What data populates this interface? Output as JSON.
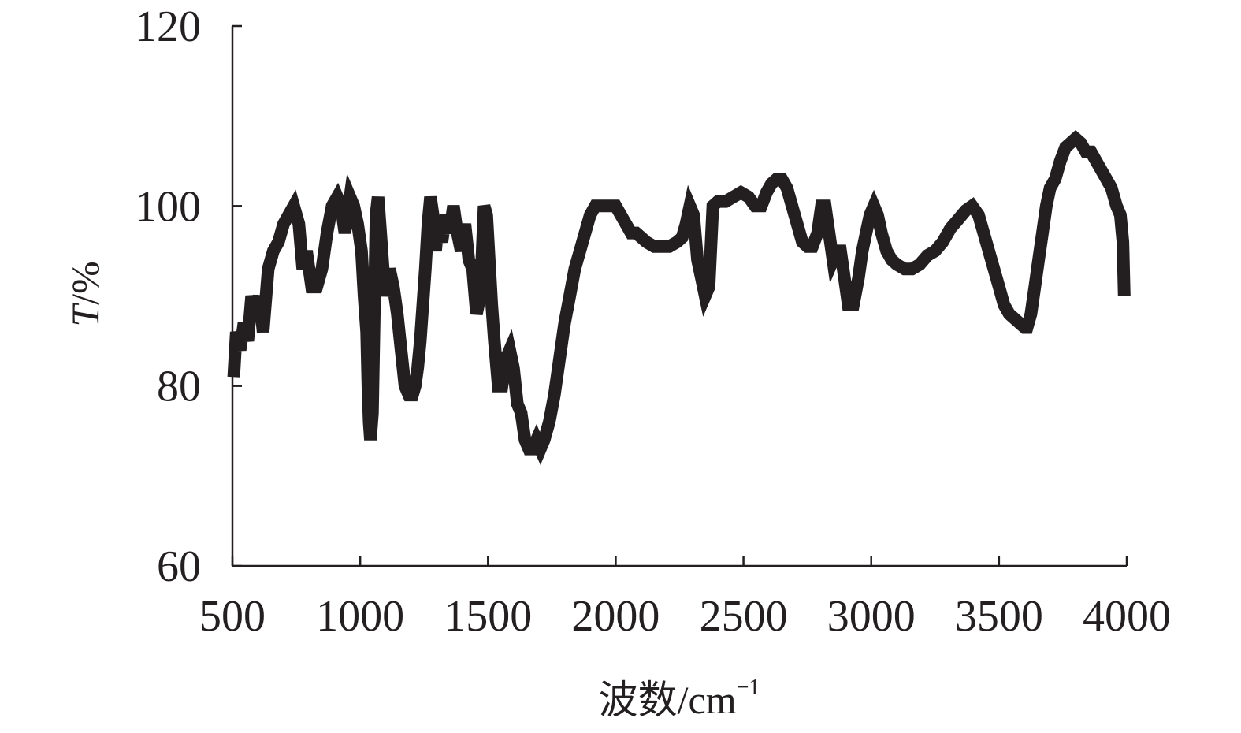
{
  "chart_data": {
    "type": "line",
    "title": "",
    "xlabel_prefix": "波数/cm",
    "xlabel_sup": "−1",
    "ylabel_italic": "T",
    "ylabel_rest": "/%",
    "xlim": [
      500,
      4000
    ],
    "ylim": [
      60,
      120
    ],
    "x_ticks": [
      500,
      1000,
      1500,
      2000,
      2500,
      3000,
      3500,
      4000
    ],
    "y_ticks": [
      60,
      80,
      100,
      120
    ],
    "legend": "none",
    "grid": false,
    "series": [
      {
        "color": "#231f20",
        "points": [
          [
            505,
            81
          ],
          [
            515,
            86
          ],
          [
            530,
            84
          ],
          [
            545,
            87
          ],
          [
            560,
            85
          ],
          [
            575,
            90
          ],
          [
            590,
            88
          ],
          [
            605,
            90
          ],
          [
            620,
            86
          ],
          [
            640,
            93
          ],
          [
            660,
            95
          ],
          [
            680,
            96
          ],
          [
            700,
            98
          ],
          [
            720,
            99
          ],
          [
            740,
            100
          ],
          [
            760,
            98
          ],
          [
            775,
            93
          ],
          [
            790,
            95
          ],
          [
            810,
            91
          ],
          [
            830,
            91
          ],
          [
            850,
            93
          ],
          [
            870,
            97
          ],
          [
            890,
            100
          ],
          [
            910,
            101
          ],
          [
            925,
            100
          ],
          [
            940,
            97
          ],
          [
            960,
            101
          ],
          [
            975,
            100
          ],
          [
            990,
            98
          ],
          [
            1005,
            95
          ],
          [
            1015,
            90
          ],
          [
            1025,
            86
          ],
          [
            1030,
            80
          ],
          [
            1035,
            76
          ],
          [
            1040,
            74
          ],
          [
            1048,
            77
          ],
          [
            1055,
            88
          ],
          [
            1062,
            99
          ],
          [
            1070,
            101
          ],
          [
            1080,
            97
          ],
          [
            1090,
            93
          ],
          [
            1100,
            90
          ],
          [
            1115,
            93
          ],
          [
            1130,
            91
          ],
          [
            1145,
            88
          ],
          [
            1160,
            84
          ],
          [
            1175,
            80
          ],
          [
            1190,
            79
          ],
          [
            1205,
            79
          ],
          [
            1215,
            80
          ],
          [
            1225,
            82
          ],
          [
            1235,
            85
          ],
          [
            1245,
            89
          ],
          [
            1255,
            93
          ],
          [
            1265,
            98
          ],
          [
            1275,
            101
          ],
          [
            1285,
            99
          ],
          [
            1295,
            95
          ],
          [
            1305,
            98
          ],
          [
            1320,
            96
          ],
          [
            1335,
            99
          ],
          [
            1350,
            97
          ],
          [
            1365,
            100
          ],
          [
            1380,
            97
          ],
          [
            1395,
            95
          ],
          [
            1410,
            98
          ],
          [
            1425,
            94
          ],
          [
            1440,
            93
          ],
          [
            1455,
            88
          ],
          [
            1470,
            90
          ],
          [
            1485,
            100
          ],
          [
            1495,
            99
          ],
          [
            1505,
            94
          ],
          [
            1515,
            89
          ],
          [
            1525,
            85
          ],
          [
            1540,
            80
          ],
          [
            1555,
            80
          ],
          [
            1570,
            83
          ],
          [
            1585,
            84
          ],
          [
            1600,
            82
          ],
          [
            1615,
            78
          ],
          [
            1630,
            77
          ],
          [
            1645,
            74
          ],
          [
            1660,
            73
          ],
          [
            1675,
            73
          ],
          [
            1690,
            74
          ],
          [
            1705,
            73
          ],
          [
            1720,
            74
          ],
          [
            1740,
            76
          ],
          [
            1760,
            79
          ],
          [
            1780,
            83
          ],
          [
            1800,
            87
          ],
          [
            1820,
            90
          ],
          [
            1840,
            93
          ],
          [
            1860,
            95
          ],
          [
            1880,
            97
          ],
          [
            1900,
            99
          ],
          [
            1920,
            100
          ],
          [
            1950,
            100
          ],
          [
            1980,
            100
          ],
          [
            2000,
            100
          ],
          [
            2020,
            99
          ],
          [
            2040,
            98
          ],
          [
            2060,
            97
          ],
          [
            2080,
            97
          ],
          [
            2100,
            96.5
          ],
          [
            2120,
            96
          ],
          [
            2150,
            95.5
          ],
          [
            2180,
            95.5
          ],
          [
            2210,
            95.5
          ],
          [
            2240,
            96
          ],
          [
            2260,
            96.5
          ],
          [
            2275,
            98
          ],
          [
            2290,
            100
          ],
          [
            2305,
            99
          ],
          [
            2320,
            94
          ],
          [
            2335,
            92
          ],
          [
            2350,
            90
          ],
          [
            2365,
            91
          ],
          [
            2380,
            100
          ],
          [
            2400,
            100.5
          ],
          [
            2430,
            100.5
          ],
          [
            2460,
            101
          ],
          [
            2490,
            101.5
          ],
          [
            2520,
            101
          ],
          [
            2545,
            100
          ],
          [
            2570,
            100
          ],
          [
            2590,
            101.5
          ],
          [
            2610,
            102.5
          ],
          [
            2630,
            103
          ],
          [
            2650,
            103
          ],
          [
            2670,
            102
          ],
          [
            2690,
            100
          ],
          [
            2710,
            98
          ],
          [
            2730,
            96
          ],
          [
            2750,
            95.5
          ],
          [
            2770,
            95.5
          ],
          [
            2790,
            97
          ],
          [
            2805,
            100
          ],
          [
            2820,
            100
          ],
          [
            2835,
            97
          ],
          [
            2850,
            94
          ],
          [
            2865,
            95
          ],
          [
            2880,
            95
          ],
          [
            2895,
            92
          ],
          [
            2910,
            89
          ],
          [
            2930,
            89
          ],
          [
            2950,
            92
          ],
          [
            2965,
            95
          ],
          [
            2980,
            97
          ],
          [
            2995,
            99
          ],
          [
            3010,
            100
          ],
          [
            3025,
            99
          ],
          [
            3040,
            97
          ],
          [
            3060,
            95
          ],
          [
            3080,
            94
          ],
          [
            3100,
            93.5
          ],
          [
            3130,
            93
          ],
          [
            3160,
            93
          ],
          [
            3190,
            93.5
          ],
          [
            3220,
            94.5
          ],
          [
            3250,
            95
          ],
          [
            3280,
            96
          ],
          [
            3310,
            97.5
          ],
          [
            3340,
            98.5
          ],
          [
            3370,
            99.5
          ],
          [
            3395,
            100
          ],
          [
            3420,
            99
          ],
          [
            3440,
            97
          ],
          [
            3460,
            95
          ],
          [
            3480,
            93
          ],
          [
            3500,
            91
          ],
          [
            3520,
            89
          ],
          [
            3540,
            88
          ],
          [
            3560,
            87.5
          ],
          [
            3580,
            87
          ],
          [
            3600,
            86.5
          ],
          [
            3610,
            86.5
          ],
          [
            3625,
            88
          ],
          [
            3640,
            91
          ],
          [
            3655,
            94
          ],
          [
            3670,
            97
          ],
          [
            3685,
            100
          ],
          [
            3700,
            102
          ],
          [
            3720,
            103
          ],
          [
            3740,
            105
          ],
          [
            3760,
            106.5
          ],
          [
            3780,
            107
          ],
          [
            3800,
            107.5
          ],
          [
            3820,
            107
          ],
          [
            3840,
            106
          ],
          [
            3860,
            106
          ],
          [
            3880,
            105
          ],
          [
            3900,
            104
          ],
          [
            3920,
            103
          ],
          [
            3940,
            102
          ],
          [
            3960,
            100
          ],
          [
            3975,
            99
          ],
          [
            3985,
            96
          ],
          [
            3990,
            90
          ]
        ]
      }
    ]
  }
}
